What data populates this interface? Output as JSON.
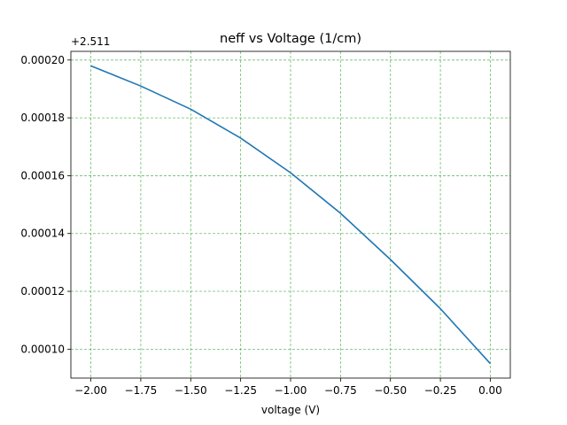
{
  "chart_data": {
    "type": "line",
    "title": "neff vs Voltage (1/cm)",
    "xlabel": "voltage (V)",
    "ylabel": "",
    "y_offset_label": "+2.511",
    "xlim": [
      -2.1,
      0.1
    ],
    "ylim": [
      9e-05,
      0.000203
    ],
    "x_ticks": [
      -2.0,
      -1.75,
      -1.5,
      -1.25,
      -1.0,
      -0.75,
      -0.5,
      -0.25,
      0.0
    ],
    "x_tick_labels": [
      "−2.00",
      "−1.75",
      "−1.50",
      "−1.25",
      "−1.00",
      "−0.75",
      "−0.50",
      "−0.25",
      "0.00"
    ],
    "y_ticks": [
      0.0001,
      0.00012,
      0.00014,
      0.00016,
      0.00018,
      0.0002
    ],
    "y_tick_labels": [
      "0.00010",
      "0.00012",
      "0.00014",
      "0.00016",
      "0.00018",
      "0.00020"
    ],
    "grid": true,
    "grid_color": "#2ca02c",
    "line_color": "#1f77b4",
    "series": [
      {
        "x": [
          -2.0,
          -1.75,
          -1.5,
          -1.25,
          -1.0,
          -0.75,
          -0.5,
          -0.25,
          0.0
        ],
        "y": [
          0.000198,
          0.000191,
          0.000183,
          0.000173,
          0.000161,
          0.000147,
          0.000131,
          0.000114,
          9.5e-05
        ]
      }
    ]
  }
}
